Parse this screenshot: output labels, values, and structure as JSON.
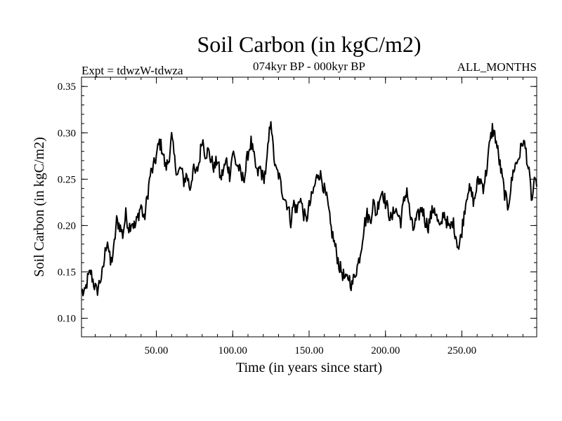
{
  "chart_data": {
    "type": "line",
    "title": "Soil Carbon (in kgC/m2)",
    "subtitle_left": "Expt = tdwzW-tdwza",
    "subtitle_center": "074kyr BP - 000kyr BP",
    "subtitle_right": "ALL_MONTHS",
    "xlabel": "Time (in years since start)",
    "ylabel": "Soil Carbon (in kgC/m2)",
    "xlim": [
      1,
      299
    ],
    "ylim": [
      0.08,
      0.36
    ],
    "x_ticks": [
      {
        "value": 50,
        "label": "50.00"
      },
      {
        "value": 100,
        "label": "100.00"
      },
      {
        "value": 150,
        "label": "150.00"
      },
      {
        "value": 200,
        "label": "200.00"
      },
      {
        "value": 250,
        "label": "250.00"
      }
    ],
    "y_ticks": [
      {
        "value": 0.1,
        "label": "0.10"
      },
      {
        "value": 0.15,
        "label": "0.15"
      },
      {
        "value": 0.2,
        "label": "0.20"
      },
      {
        "value": 0.25,
        "label": "0.25"
      },
      {
        "value": 0.3,
        "label": "0.30"
      },
      {
        "value": 0.35,
        "label": "0.35"
      }
    ],
    "series": [
      {
        "name": "Soil Carbon",
        "color": "#000000",
        "points": [
          [
            1,
            0.13
          ],
          [
            3,
            0.125
          ],
          [
            5,
            0.142
          ],
          [
            7,
            0.15
          ],
          [
            9,
            0.138
          ],
          [
            11,
            0.128
          ],
          [
            13,
            0.14
          ],
          [
            15,
            0.15
          ],
          [
            17,
            0.178
          ],
          [
            18,
            0.185
          ],
          [
            20,
            0.158
          ],
          [
            22,
            0.172
          ],
          [
            24,
            0.205
          ],
          [
            26,
            0.2
          ],
          [
            28,
            0.19
          ],
          [
            30,
            0.212
          ],
          [
            32,
            0.198
          ],
          [
            34,
            0.205
          ],
          [
            36,
            0.198
          ],
          [
            38,
            0.21
          ],
          [
            40,
            0.222
          ],
          [
            42,
            0.205
          ],
          [
            44,
            0.23
          ],
          [
            46,
            0.255
          ],
          [
            48,
            0.262
          ],
          [
            50,
            0.275
          ],
          [
            52,
            0.29
          ],
          [
            54,
            0.282
          ],
          [
            56,
            0.262
          ],
          [
            58,
            0.27
          ],
          [
            60,
            0.295
          ],
          [
            62,
            0.27
          ],
          [
            64,
            0.255
          ],
          [
            66,
            0.262
          ],
          [
            68,
            0.248
          ],
          [
            70,
            0.255
          ],
          [
            72,
            0.24
          ],
          [
            74,
            0.26
          ],
          [
            76,
            0.255
          ],
          [
            78,
            0.268
          ],
          [
            80,
            0.295
          ],
          [
            82,
            0.278
          ],
          [
            84,
            0.28
          ],
          [
            86,
            0.27
          ],
          [
            88,
            0.262
          ],
          [
            90,
            0.272
          ],
          [
            92,
            0.25
          ],
          [
            94,
            0.26
          ],
          [
            96,
            0.27
          ],
          [
            98,
            0.255
          ],
          [
            100,
            0.28
          ],
          [
            102,
            0.268
          ],
          [
            104,
            0.262
          ],
          [
            106,
            0.25
          ],
          [
            108,
            0.255
          ],
          [
            110,
            0.278
          ],
          [
            112,
            0.29
          ],
          [
            114,
            0.272
          ],
          [
            116,
            0.255
          ],
          [
            118,
            0.262
          ],
          [
            120,
            0.25
          ],
          [
            122,
            0.262
          ],
          [
            124,
            0.3
          ],
          [
            125,
            0.318
          ],
          [
            126,
            0.29
          ],
          [
            128,
            0.26
          ],
          [
            130,
            0.255
          ],
          [
            132,
            0.24
          ],
          [
            134,
            0.23
          ],
          [
            136,
            0.222
          ],
          [
            138,
            0.205
          ],
          [
            140,
            0.225
          ],
          [
            142,
            0.215
          ],
          [
            144,
            0.232
          ],
          [
            146,
            0.215
          ],
          [
            148,
            0.205
          ],
          [
            150,
            0.22
          ],
          [
            152,
            0.232
          ],
          [
            154,
            0.245
          ],
          [
            156,
            0.258
          ],
          [
            158,
            0.252
          ],
          [
            160,
            0.238
          ],
          [
            162,
            0.225
          ],
          [
            164,
            0.2
          ],
          [
            166,
            0.185
          ],
          [
            168,
            0.17
          ],
          [
            170,
            0.155
          ],
          [
            172,
            0.148
          ],
          [
            174,
            0.14
          ],
          [
            176,
            0.145
          ],
          [
            178,
            0.135
          ],
          [
            180,
            0.148
          ],
          [
            182,
            0.158
          ],
          [
            184,
            0.175
          ],
          [
            186,
            0.2
          ],
          [
            188,
            0.212
          ],
          [
            190,
            0.205
          ],
          [
            192,
            0.225
          ],
          [
            194,
            0.212
          ],
          [
            196,
            0.23
          ],
          [
            198,
            0.238
          ],
          [
            200,
            0.225
          ],
          [
            202,
            0.215
          ],
          [
            204,
            0.205
          ],
          [
            206,
            0.22
          ],
          [
            208,
            0.212
          ],
          [
            210,
            0.205
          ],
          [
            212,
            0.225
          ],
          [
            214,
            0.24
          ],
          [
            216,
            0.212
          ],
          [
            218,
            0.195
          ],
          [
            220,
            0.205
          ],
          [
            222,
            0.212
          ],
          [
            224,
            0.22
          ],
          [
            226,
            0.205
          ],
          [
            228,
            0.2
          ],
          [
            230,
            0.212
          ],
          [
            232,
            0.22
          ],
          [
            234,
            0.205
          ],
          [
            236,
            0.195
          ],
          [
            238,
            0.215
          ],
          [
            240,
            0.205
          ],
          [
            242,
            0.195
          ],
          [
            244,
            0.205
          ],
          [
            246,
            0.19
          ],
          [
            248,
            0.175
          ],
          [
            250,
            0.195
          ],
          [
            252,
            0.22
          ],
          [
            254,
            0.24
          ],
          [
            256,
            0.235
          ],
          [
            258,
            0.225
          ],
          [
            260,
            0.245
          ],
          [
            262,
            0.25
          ],
          [
            264,
            0.242
          ],
          [
            266,
            0.258
          ],
          [
            268,
            0.285
          ],
          [
            270,
            0.305
          ],
          [
            272,
            0.295
          ],
          [
            274,
            0.275
          ],
          [
            276,
            0.255
          ],
          [
            278,
            0.235
          ],
          [
            280,
            0.22
          ],
          [
            282,
            0.24
          ],
          [
            284,
            0.262
          ],
          [
            286,
            0.268
          ],
          [
            288,
            0.278
          ],
          [
            290,
            0.292
          ],
          [
            292,
            0.28
          ],
          [
            294,
            0.255
          ],
          [
            296,
            0.225
          ],
          [
            297,
            0.245
          ],
          [
            299,
            0.242
          ]
        ]
      }
    ]
  }
}
